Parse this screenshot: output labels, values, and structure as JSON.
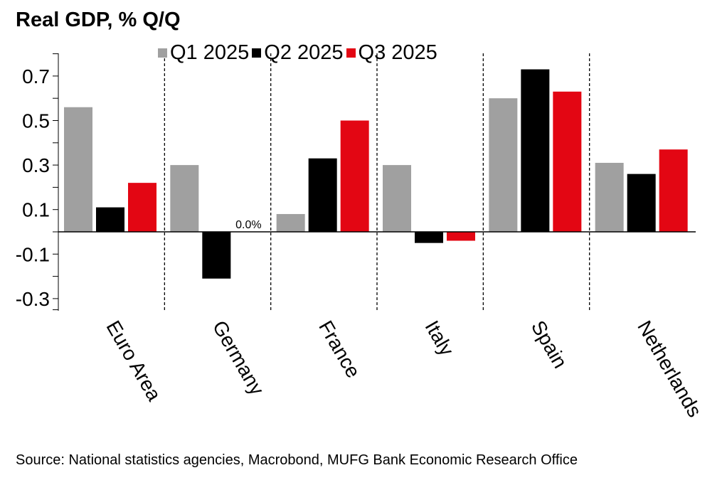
{
  "chart_data": {
    "type": "bar",
    "title": "Real GDP, % Q/Q",
    "categories": [
      "Euro Area",
      "Germany",
      "France",
      "Italy",
      "Spain",
      "Netherlands"
    ],
    "series": [
      {
        "name": "Q1 2025",
        "color": "#a0a0a0",
        "values": [
          0.56,
          0.3,
          0.08,
          0.3,
          0.6,
          0.31
        ]
      },
      {
        "name": "Q2 2025",
        "color": "#000000",
        "values": [
          0.11,
          -0.21,
          0.33,
          -0.05,
          0.73,
          0.26
        ]
      },
      {
        "name": "Q3 2025",
        "color": "#e30613",
        "values": [
          0.22,
          0.0,
          0.5,
          -0.04,
          0.63,
          0.37
        ]
      }
    ],
    "annotations": [
      {
        "category": "Germany",
        "series": "Q3 2025",
        "text": "0.0%"
      }
    ],
    "yticks": [
      "0.7",
      "0.5",
      "0.3",
      "0.1",
      "-0.1",
      "-0.3"
    ],
    "ylim": [
      -0.35,
      0.74
    ],
    "xlabel": "",
    "ylabel": "",
    "legend_position": "top",
    "grid": false,
    "category_separators": "dashed"
  },
  "source": "Source: National statistics agencies, Macrobond, MUFG Bank Economic Research Office"
}
